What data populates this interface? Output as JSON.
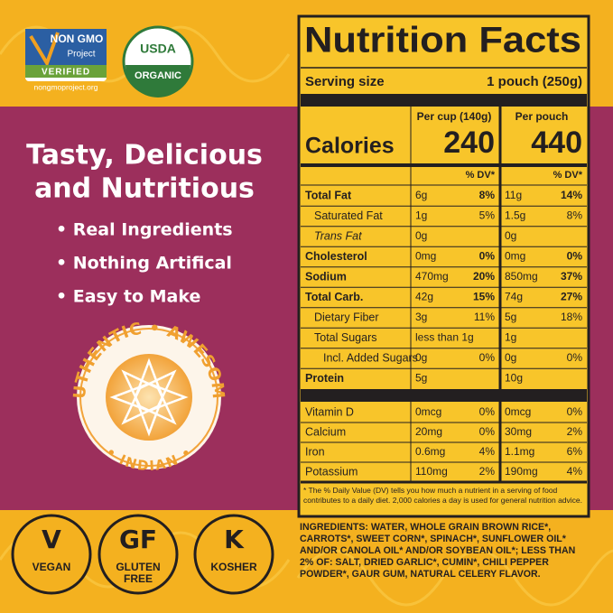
{
  "badges": {
    "nongmo": {
      "top": "NON GMO",
      "middle": "Project",
      "verified": "VERIFIED",
      "url": "nongmoproject.org"
    },
    "usda": {
      "top": "USDA",
      "bottom": "ORGANIC"
    }
  },
  "headline": [
    "Tasty, Delicious",
    "and Nutritious"
  ],
  "bullets": [
    "• Real Ingredients",
    "• Nothing Artifical",
    "• Easy to Make"
  ],
  "seal": {
    "words": [
      "AUTHENTIC",
      "•",
      "AWESOME",
      "•",
      "INDIAN",
      "•"
    ]
  },
  "diet_icons": [
    {
      "symbol": "V",
      "label": [
        "VEGAN"
      ]
    },
    {
      "symbol": "GF",
      "label": [
        "GLUTEN",
        "FREE"
      ]
    },
    {
      "symbol": "K",
      "label": [
        "KOSHER"
      ]
    }
  ],
  "nutrition": {
    "title": "Nutrition Facts",
    "serving_label": "Serving size",
    "serving_value": "1 pouch (250g)",
    "calories_label": "Calories",
    "columns": [
      {
        "header": "Per cup (140g)",
        "calories": "240",
        "dv": "% DV*"
      },
      {
        "header": "Per pouch",
        "calories": "440",
        "dv": "% DV*"
      }
    ],
    "rows": [
      {
        "name": "Total Fat",
        "bold": true,
        "indent": 0,
        "cols": [
          {
            "amount": "6g",
            "dv": "8%"
          },
          {
            "amount": "11g",
            "dv": "14%"
          }
        ]
      },
      {
        "name": "Saturated Fat",
        "bold": false,
        "indent": 1,
        "cols": [
          {
            "amount": "1g",
            "dv": "5%"
          },
          {
            "amount": "1.5g",
            "dv": "8%"
          }
        ]
      },
      {
        "name": "Trans Fat",
        "bold": false,
        "indent": 1,
        "italic_word": true,
        "cols": [
          {
            "amount": "0g"
          },
          {
            "amount": "0g"
          }
        ]
      },
      {
        "name": "Cholesterol",
        "bold": true,
        "indent": 0,
        "cols": [
          {
            "amount": "0mg",
            "dv": "0%"
          },
          {
            "amount": "0mg",
            "dv": "0%"
          }
        ]
      },
      {
        "name": "Sodium",
        "bold": true,
        "indent": 0,
        "cols": [
          {
            "amount": "470mg",
            "dv": "20%"
          },
          {
            "amount": "850mg",
            "dv": "37%"
          }
        ]
      },
      {
        "name": "Total Carb.",
        "bold": true,
        "indent": 0,
        "cols": [
          {
            "amount": "42g",
            "dv": "15%"
          },
          {
            "amount": "74g",
            "dv": "27%"
          }
        ]
      },
      {
        "name": "Dietary Fiber",
        "bold": false,
        "indent": 1,
        "cols": [
          {
            "amount": "3g",
            "dv": "11%"
          },
          {
            "amount": "5g",
            "dv": "18%"
          }
        ]
      },
      {
        "name": "Total Sugars",
        "bold": false,
        "indent": 1,
        "cols": [
          {
            "amount": "less than 1g"
          },
          {
            "amount": "1g"
          }
        ]
      },
      {
        "name": "Incl. Added Sugars",
        "bold": false,
        "indent": 2,
        "cols": [
          {
            "amount": "0g",
            "dv": "0%"
          },
          {
            "amount": "0g",
            "dv": "0%"
          }
        ]
      },
      {
        "name": "Protein",
        "bold": true,
        "indent": 0,
        "cols": [
          {
            "amount": "5g"
          },
          {
            "amount": "10g"
          }
        ]
      }
    ],
    "vitamins": [
      {
        "name": "Vitamin D",
        "cols": [
          {
            "amount": "0mcg",
            "dv": "0%"
          },
          {
            "amount": "0mcg",
            "dv": "0%"
          }
        ]
      },
      {
        "name": "Calcium",
        "cols": [
          {
            "amount": "20mg",
            "dv": "0%"
          },
          {
            "amount": "30mg",
            "dv": "2%"
          }
        ]
      },
      {
        "name": "Iron",
        "cols": [
          {
            "amount": "0.6mg",
            "dv": "4%"
          },
          {
            "amount": "1.1mg",
            "dv": "6%"
          }
        ]
      },
      {
        "name": "Potassium",
        "cols": [
          {
            "amount": "110mg",
            "dv": "2%"
          },
          {
            "amount": "190mg",
            "dv": "4%"
          }
        ]
      }
    ],
    "footnote": "* The % Daily Value (DV) tells you how much a nutrient in a serving of food contributes to a daily diet. 2,000 calories a day is used for general nutrition advice.",
    "ingredients": "INGREDIENTS: WATER, WHOLE GRAIN BROWN RICE*, CARROTS*, SWEET CORN*, SPINACH*, SUNFLOWER OIL* AND/OR CANOLA OIL* AND/OR SOYBEAN OIL*; LESS THAN 2% OF: SALT, DRIED GARLIC*, CUMIN*, CHILI PEPPER POWDER*, GAUR GUM, NATURAL CELERY FLAVOR."
  }
}
